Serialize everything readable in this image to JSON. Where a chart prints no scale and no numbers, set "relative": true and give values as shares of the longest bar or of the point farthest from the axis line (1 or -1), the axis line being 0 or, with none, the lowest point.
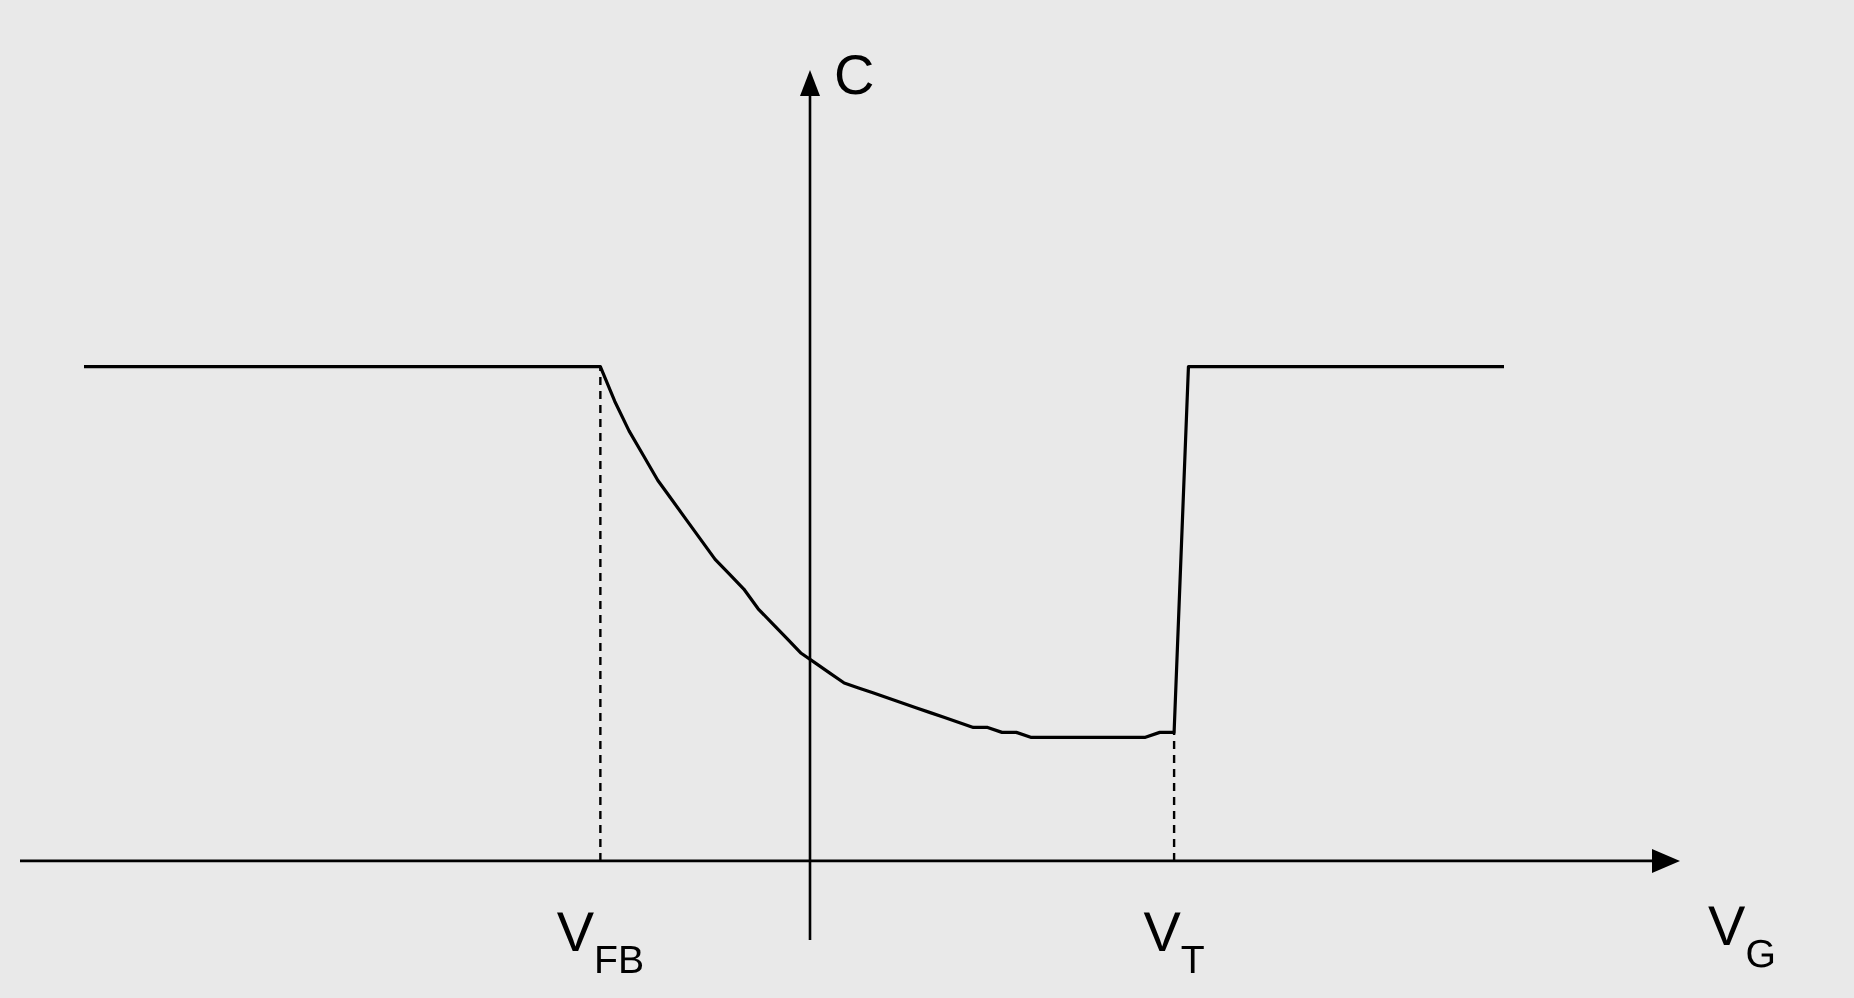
{
  "chart_data": {
    "type": "line",
    "relative": true,
    "xlabel": "V$_{G}$",
    "ylabel": "C",
    "categories": [
      null,
      null,
      null,
      null,
      null,
      null,
      null,
      null,
      null,
      null,
      null,
      null,
      null,
      null,
      null,
      null,
      null,
      null,
      null,
      null,
      null,
      null,
      null,
      null,
      null,
      null,
      null,
      null,
      null,
      null,
      null,
      null,
      null,
      null,
      null,
      null,
      "V$_{FB}$",
      null,
      null,
      null,
      null,
      null,
      null,
      null,
      null,
      null,
      null,
      null,
      null,
      null,
      null,
      null,
      null,
      null,
      null,
      null,
      null,
      null,
      null,
      null,
      null,
      null,
      null,
      null,
      null,
      null,
      null,
      null,
      null,
      null,
      null,
      null,
      null,
      null,
      null,
      null,
      "V$_{T}$",
      null,
      null,
      null,
      null,
      null,
      null,
      null,
      null,
      null,
      null,
      null,
      null,
      null,
      null,
      null,
      null,
      null,
      null,
      null,
      null,
      null,
      null,
      null
    ],
    "series": [
      {
        "color": "#000000",
        "values": [
          1,
          1,
          1,
          1,
          1,
          1,
          1,
          1,
          1,
          1,
          1,
          1,
          1,
          1,
          1,
          1,
          1,
          1,
          1,
          1,
          1,
          1,
          1,
          1,
          1,
          1,
          1,
          1,
          1,
          1,
          1,
          1,
          1,
          1,
          1,
          1,
          1,
          0.93,
          0.87,
          0.82,
          0.77,
          0.73,
          0.69,
          0.65,
          0.61,
          0.58,
          0.55,
          0.51,
          0.48,
          0.45,
          0.42,
          0.4,
          0.38,
          0.36,
          0.35,
          0.34,
          0.33,
          0.32,
          0.31,
          0.3,
          0.29,
          0.28,
          0.27,
          0.27,
          0.26,
          0.26,
          0.25,
          0.25,
          0.25,
          0.25,
          0.25,
          0.25,
          0.25,
          0.25,
          0.25,
          0.26,
          0.26,
          1,
          1,
          1,
          1,
          1,
          1,
          1,
          1,
          1,
          1,
          1,
          1,
          1,
          1,
          1,
          1,
          1,
          1,
          1,
          1,
          1,
          1,
          1
        ]
      }
    ],
    "ref_lines": [
      {
        "axis": "x",
        "value": "V$_{FB}$",
        "line_style": "dashed"
      },
      {
        "axis": "x",
        "value": "V$_{T}$",
        "line_style": "dashed"
      }
    ],
    "line_style": "solid"
  }
}
